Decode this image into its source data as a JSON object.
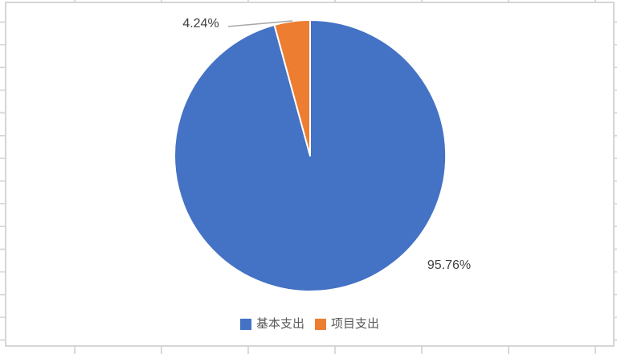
{
  "chart_data": {
    "type": "pie",
    "title": "",
    "series": [
      {
        "name": "基本支出",
        "value": 95.76,
        "label": "95.76%",
        "color": "#4472C4"
      },
      {
        "name": "项目支出",
        "value": 4.24,
        "label": "4.24%",
        "color": "#ED7D31"
      }
    ],
    "start_angle_deg": 0,
    "direction": "clockwise",
    "legend_position": "bottom",
    "slice_border_color": "#FFFFFF",
    "label_color": "#3F3F3F",
    "leader_line_color": "#A6A6A6"
  },
  "frame": {
    "background": "#FFFFFF",
    "border_color": "#D6D6D6"
  },
  "sheet": {
    "gridline_color": "#D9D9D9"
  }
}
